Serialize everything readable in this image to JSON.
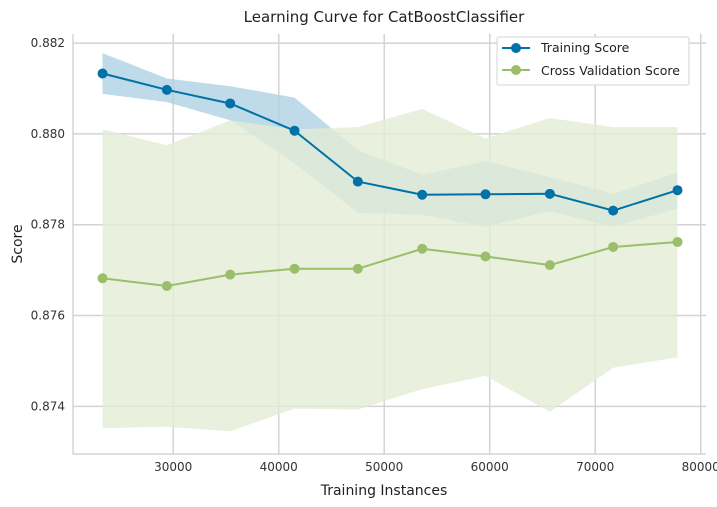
{
  "chart_data": {
    "type": "line",
    "title": "Learning Curve for CatBoostClassifier",
    "xlabel": "Training Instances",
    "ylabel": "Score",
    "xlim": [
      20500,
      80500
    ],
    "ylim": [
      0.87295,
      0.8822
    ],
    "xticks": [
      30000,
      40000,
      50000,
      60000,
      70000,
      80000
    ],
    "xtick_labels": [
      "30000",
      "40000",
      "50000",
      "60000",
      "70000",
      "80000"
    ],
    "yticks": [
      0.874,
      0.876,
      0.878,
      0.88,
      0.882
    ],
    "ytick_labels": [
      "0.874",
      "0.876",
      "0.878",
      "0.880",
      "0.882"
    ],
    "grid": true,
    "legend_position": "top-right",
    "x": [
      23300,
      29400,
      35400,
      41500,
      47500,
      53600,
      59600,
      65700,
      71700,
      77800
    ],
    "series": [
      {
        "name": "Training Score",
        "color": "#0072a7",
        "band_color": "#a9cde0",
        "values": [
          0.88133,
          0.88097,
          0.88067,
          0.88007,
          0.87895,
          0.87866,
          0.87867,
          0.87868,
          0.87831,
          0.87876
        ],
        "upper": [
          0.88178,
          0.88122,
          0.88105,
          0.8808,
          0.87964,
          0.8791,
          0.8794,
          0.87905,
          0.87868,
          0.87915
        ],
        "lower": [
          0.88088,
          0.8807,
          0.8803,
          0.87935,
          0.87826,
          0.87822,
          0.87795,
          0.8783,
          0.87795,
          0.87836
        ]
      },
      {
        "name": "Cross Validation Score",
        "color": "#9abe6a",
        "band_color": "#e4ecd6",
        "values": [
          0.87682,
          0.87665,
          0.8769,
          0.87703,
          0.87703,
          0.87747,
          0.8773,
          0.87711,
          0.87751,
          0.87762
        ],
        "upper": [
          0.8801,
          0.87975,
          0.8803,
          0.8801,
          0.88015,
          0.88055,
          0.8799,
          0.88035,
          0.88015,
          0.88015
        ],
        "lower": [
          0.87352,
          0.87355,
          0.87345,
          0.87395,
          0.87393,
          0.87438,
          0.87467,
          0.87388,
          0.87485,
          0.87508
        ]
      }
    ]
  }
}
